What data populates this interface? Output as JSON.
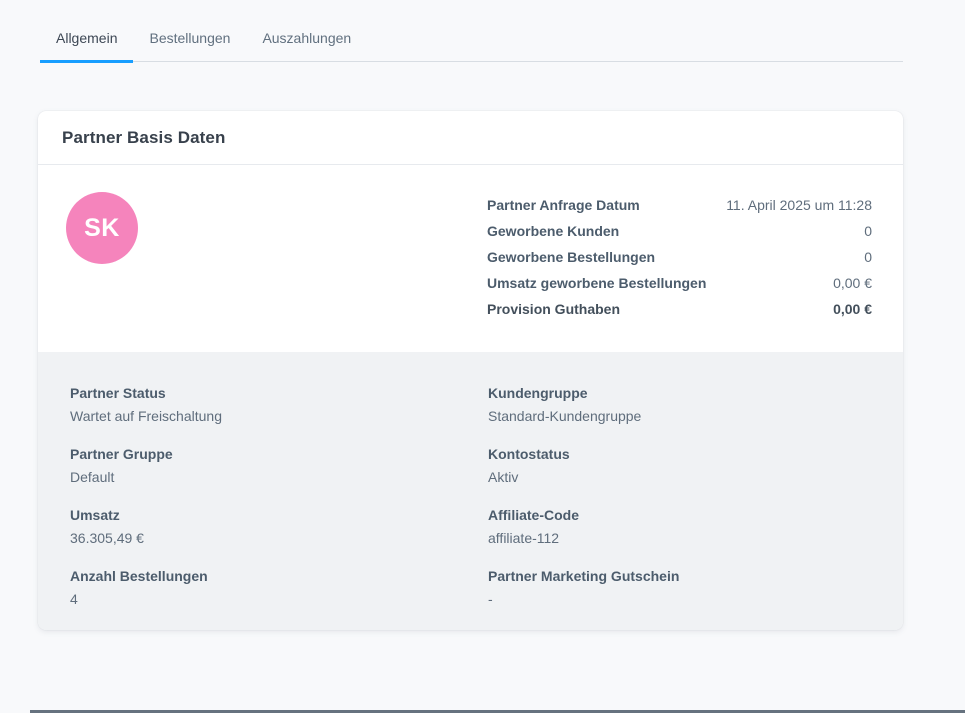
{
  "tabs": {
    "items": [
      {
        "label": "Allgemein",
        "active": true
      },
      {
        "label": "Bestellungen",
        "active": false
      },
      {
        "label": "Auszahlungen",
        "active": false
      }
    ]
  },
  "card": {
    "title": "Partner Basis Daten",
    "avatar": {
      "initials": "SK"
    },
    "summary_rows": [
      {
        "label": "Partner Anfrage Datum",
        "value": "11. April 2025 um 11:28"
      },
      {
        "label": "Geworbene Kunden",
        "value": "0"
      },
      {
        "label": "Geworbene Bestellungen",
        "value": "0"
      },
      {
        "label": "Umsatz geworbene Bestellungen",
        "value": "0,00 €"
      },
      {
        "label": "Provision Guthaben",
        "value": "0,00 €"
      }
    ],
    "details": {
      "left": [
        {
          "label": "Partner Status",
          "value": "Wartet auf Freischaltung"
        },
        {
          "label": "Partner Gruppe",
          "value": "Default"
        },
        {
          "label": "Umsatz",
          "value": "36.305,49 €"
        },
        {
          "label": "Anzahl Bestellungen",
          "value": "4"
        }
      ],
      "right": [
        {
          "label": "Kundengruppe",
          "value": "Standard-Kundengruppe"
        },
        {
          "label": "Kontostatus",
          "value": "Aktiv"
        },
        {
          "label": "Affiliate-Code",
          "value": "affiliate-112"
        },
        {
          "label": "Partner Marketing Gutschein",
          "value": "-"
        }
      ]
    }
  },
  "colors": {
    "accent_blue": "#189eff",
    "avatar_pink": "#f584bc",
    "section_gray": "#f0f2f4"
  }
}
